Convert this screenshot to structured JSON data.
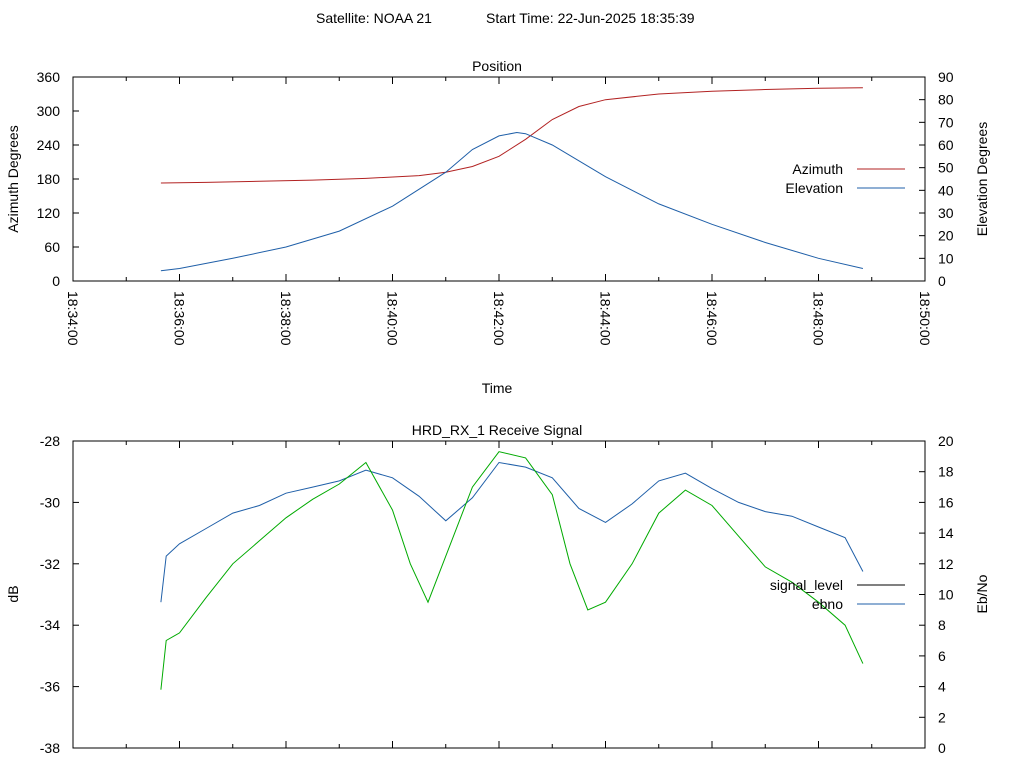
{
  "header": {
    "satellite": "Satellite: NOAA 21",
    "start_time": "Start Time: 22-Jun-2025 18:35:39"
  },
  "chart_data": [
    {
      "type": "line",
      "title": "Position",
      "xlabel": "Time",
      "ylabel": "Azimuth Degrees",
      "y2label": "Elevation Degrees",
      "xlim": [
        "18:34:00",
        "18:50:00"
      ],
      "x_ticks": [
        "18:34:00",
        "18:36:00",
        "18:38:00",
        "18:40:00",
        "18:42:00",
        "18:44:00",
        "18:46:00",
        "18:48:00",
        "18:50:00"
      ],
      "ylim": [
        0,
        360
      ],
      "y_ticks": [
        0,
        60,
        120,
        180,
        240,
        300,
        360
      ],
      "y2lim": [
        0,
        90
      ],
      "y2_ticks": [
        0,
        10,
        20,
        30,
        40,
        50,
        60,
        70,
        80,
        90
      ],
      "legend_position": "right",
      "series": [
        {
          "name": "Azimuth",
          "axis": "y",
          "color": "#b22222",
          "x": [
            "18:35:39",
            "18:36:30",
            "18:37:30",
            "18:38:30",
            "18:39:30",
            "18:40:30",
            "18:41:00",
            "18:41:30",
            "18:42:00",
            "18:42:30",
            "18:43:00",
            "18:43:30",
            "18:44:00",
            "18:45:00",
            "18:46:00",
            "18:47:00",
            "18:48:00",
            "18:48:50"
          ],
          "values": [
            173,
            174,
            176,
            178,
            181,
            186,
            192,
            202,
            220,
            250,
            285,
            308,
            320,
            330,
            335,
            338,
            340,
            341
          ]
        },
        {
          "name": "Elevation",
          "axis": "y2",
          "color": "#1f5fa8",
          "x": [
            "18:35:39",
            "18:36:00",
            "18:37:00",
            "18:38:00",
            "18:39:00",
            "18:40:00",
            "18:41:00",
            "18:41:30",
            "18:42:00",
            "18:42:20",
            "18:42:30",
            "18:43:00",
            "18:44:00",
            "18:45:00",
            "18:46:00",
            "18:47:00",
            "18:48:00",
            "18:48:50"
          ],
          "values": [
            4.5,
            5.5,
            10,
            15,
            22,
            33,
            48,
            58,
            64,
            65.5,
            65,
            60,
            46,
            34,
            25,
            17,
            10,
            5.5
          ]
        }
      ]
    },
    {
      "type": "line",
      "title": "HRD_RX_1 Receive Signal",
      "ylabel": "dB",
      "y2label": "Eb/No",
      "xlim": [
        "18:34:00",
        "18:50:00"
      ],
      "ylim": [
        -38,
        -28
      ],
      "y_ticks": [
        -38,
        -36,
        -34,
        -32,
        -30,
        -28
      ],
      "y2lim": [
        0,
        20
      ],
      "y2_ticks": [
        0,
        2,
        4,
        6,
        8,
        10,
        12,
        14,
        16,
        18,
        20
      ],
      "legend_position": "right",
      "series": [
        {
          "name": "signal_level",
          "axis": "y",
          "color": "#000000",
          "x": [],
          "values": []
        },
        {
          "name": "ebno",
          "axis": "y2",
          "color": "#1f5fa8",
          "x": [
            "18:35:39",
            "18:35:45",
            "18:36:00",
            "18:36:30",
            "18:37:00",
            "18:37:30",
            "18:38:00",
            "18:38:30",
            "18:39:00",
            "18:39:30",
            "18:40:00",
            "18:40:30",
            "18:41:00",
            "18:41:30",
            "18:42:00",
            "18:42:30",
            "18:43:00",
            "18:43:30",
            "18:44:00",
            "18:44:30",
            "18:45:00",
            "18:45:30",
            "18:46:00",
            "18:46:30",
            "18:47:00",
            "18:47:30",
            "18:48:00",
            "18:48:30",
            "18:48:50"
          ],
          "values": [
            9.5,
            12.5,
            13.3,
            14.3,
            15.3,
            15.8,
            16.6,
            17.0,
            17.4,
            18.1,
            17.6,
            16.4,
            14.8,
            16.3,
            18.6,
            18.3,
            17.6,
            15.6,
            14.7,
            15.9,
            17.4,
            17.9,
            16.9,
            16.0,
            15.4,
            15.1,
            14.4,
            13.7,
            11.5
          ]
        },
        {
          "name": "",
          "axis": "y2",
          "color": "#00aa00",
          "x": [
            "18:35:39",
            "18:35:45",
            "18:36:00",
            "18:36:30",
            "18:37:00",
            "18:37:30",
            "18:38:00",
            "18:38:30",
            "18:39:00",
            "18:39:30",
            "18:40:00",
            "18:40:20",
            "18:40:40",
            "18:41:00",
            "18:41:30",
            "18:42:00",
            "18:42:30",
            "18:43:00",
            "18:43:20",
            "18:43:40",
            "18:44:00",
            "18:44:30",
            "18:45:00",
            "18:45:30",
            "18:46:00",
            "18:46:30",
            "18:47:00",
            "18:47:30",
            "18:48:00",
            "18:48:30",
            "18:48:50"
          ],
          "values": [
            3.8,
            7.0,
            7.5,
            9.8,
            12.0,
            13.5,
            15.0,
            16.2,
            17.2,
            18.6,
            15.5,
            12.0,
            9.5,
            12.5,
            17.0,
            19.3,
            18.9,
            16.5,
            12.0,
            9.0,
            9.5,
            12.0,
            15.3,
            16.8,
            15.8,
            13.8,
            11.8,
            10.8,
            9.5,
            8.0,
            5.5
          ]
        }
      ]
    }
  ]
}
